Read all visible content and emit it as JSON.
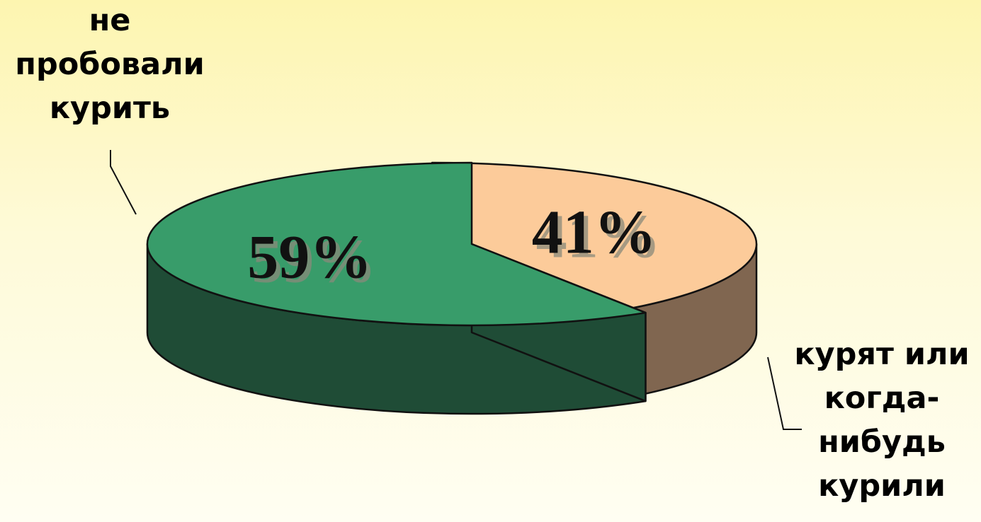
{
  "chart_data": {
    "type": "pie",
    "title": "",
    "slices": [
      {
        "label": "не пробовали курить",
        "label_lines": [
          "не",
          "пробовали",
          "курить"
        ],
        "value": 41,
        "value_label": "41%",
        "top_color": "#fccb9a",
        "side_color": "#806650"
      },
      {
        "label": "курят или когда-нибудь курили",
        "label_lines": [
          "курят или",
          "когда-",
          "нибудь",
          "курили"
        ],
        "value": 59,
        "value_label": "59%",
        "top_color": "#389c6a",
        "side_color": "#1f4c36"
      }
    ],
    "style": "3d-exploded"
  }
}
